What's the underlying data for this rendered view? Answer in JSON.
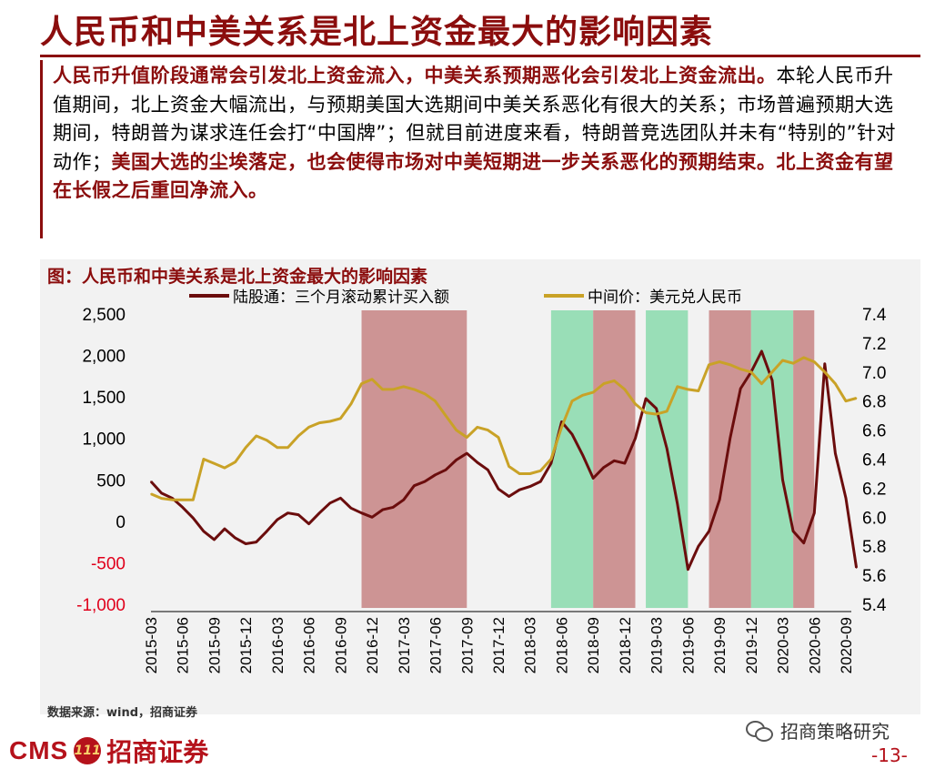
{
  "title": "人民币和中美关系是北上资金最大的影响因素",
  "paragraph": {
    "seg1": "人民币升值阶段通常会引发北上资金流入，中美关系预期恶化会引发北上资金流出。",
    "seg2": "本轮人民币升值期间，北上资金大幅流出，与预期美国大选期间中美关系恶化有很大的关系；市场普遍预期大选期间，特朗普为谋求连任会打“中国牌”；但就目前进度来看，特朗普竞选团队并未有“特别的”针对动作；",
    "seg3": "美国大选的尘埃落定，也会使得市场对中美短期进一步关系恶化的预期结束。北上资金有望在长假之后重回净流入。"
  },
  "chart_data": {
    "type": "line",
    "title": "图：人民币和中美关系是北上资金最大的影响因素",
    "legend": [
      "陆股通：三个月滚动累计买入额",
      "中间价：美元兑人民币"
    ],
    "colors": {
      "flow": "#6b0d0d",
      "cny": "#c9a227",
      "red_band": "#c98a8a",
      "green_band": "#8fdcb0"
    },
    "left_axis": {
      "ticks": [
        "2,500",
        "2,000",
        "1,500",
        "1,000",
        "500",
        "0",
        "-500",
        "-1,000"
      ],
      "values": [
        2500,
        2000,
        1500,
        1000,
        500,
        0,
        -500,
        -1000
      ],
      "ylim": [
        -1000,
        2500
      ]
    },
    "right_axis": {
      "ticks": [
        "7.4",
        "7.2",
        "7.0",
        "6.8",
        "6.6",
        "6.4",
        "6.2",
        "6.0",
        "5.8",
        "5.6",
        "5.4"
      ],
      "values": [
        7.4,
        7.2,
        7.0,
        6.8,
        6.6,
        6.4,
        6.2,
        6.0,
        5.8,
        5.6,
        5.4
      ],
      "ylim": [
        5.4,
        7.4
      ]
    },
    "x_ticks": [
      "2015-03",
      "2015-06",
      "2015-09",
      "2015-12",
      "2016-03",
      "2016-06",
      "2016-09",
      "2016-12",
      "2017-03",
      "2017-06",
      "2017-09",
      "2017-12",
      "2018-03",
      "2018-06",
      "2018-09",
      "2018-12",
      "2019-03",
      "2019-06",
      "2019-09",
      "2019-12",
      "2020-03",
      "2020-06",
      "2020-09"
    ],
    "x_range": [
      "2015-03",
      "2020-09"
    ],
    "bands": [
      {
        "from": "2016-11",
        "to": "2017-09",
        "color": "red"
      },
      {
        "from": "2018-05",
        "to": "2018-09",
        "color": "green"
      },
      {
        "from": "2018-09",
        "to": "2019-01",
        "color": "red"
      },
      {
        "from": "2019-02",
        "to": "2019-06",
        "color": "green"
      },
      {
        "from": "2019-08",
        "to": "2019-12",
        "color": "red"
      },
      {
        "from": "2019-12",
        "to": "2020-04",
        "color": "green"
      },
      {
        "from": "2020-04",
        "to": "2020-06",
        "color": "red"
      }
    ],
    "series": [
      {
        "name": "陆股通：三个月滚动累计买入额",
        "axis": "left",
        "points": [
          [
            "2015-03",
            480
          ],
          [
            "2015-04",
            340
          ],
          [
            "2015-05",
            280
          ],
          [
            "2015-06",
            170
          ],
          [
            "2015-07",
            40
          ],
          [
            "2015-08",
            -120
          ],
          [
            "2015-09",
            -220
          ],
          [
            "2015-10",
            -90
          ],
          [
            "2015-11",
            -200
          ],
          [
            "2015-12",
            -270
          ],
          [
            "2016-01",
            -250
          ],
          [
            "2016-02",
            -120
          ],
          [
            "2016-03",
            20
          ],
          [
            "2016-04",
            100
          ],
          [
            "2016-05",
            80
          ],
          [
            "2016-06",
            -30
          ],
          [
            "2016-07",
            100
          ],
          [
            "2016-08",
            220
          ],
          [
            "2016-09",
            280
          ],
          [
            "2016-10",
            160
          ],
          [
            "2016-11",
            100
          ],
          [
            "2016-12",
            50
          ],
          [
            "2017-01",
            140
          ],
          [
            "2017-02",
            170
          ],
          [
            "2017-03",
            260
          ],
          [
            "2017-04",
            430
          ],
          [
            "2017-05",
            480
          ],
          [
            "2017-06",
            560
          ],
          [
            "2017-07",
            620
          ],
          [
            "2017-08",
            740
          ],
          [
            "2017-09",
            820
          ],
          [
            "2017-10",
            710
          ],
          [
            "2017-11",
            620
          ],
          [
            "2017-12",
            390
          ],
          [
            "2018-01",
            300
          ],
          [
            "2018-02",
            380
          ],
          [
            "2018-03",
            420
          ],
          [
            "2018-04",
            480
          ],
          [
            "2018-05",
            700
          ],
          [
            "2018-06",
            1200
          ],
          [
            "2018-07",
            1050
          ],
          [
            "2018-08",
            800
          ],
          [
            "2018-09",
            520
          ],
          [
            "2018-10",
            650
          ],
          [
            "2018-11",
            730
          ],
          [
            "2018-12",
            700
          ],
          [
            "2019-01",
            1000
          ],
          [
            "2019-02",
            1480
          ],
          [
            "2019-03",
            1360
          ],
          [
            "2019-04",
            880
          ],
          [
            "2019-05",
            210
          ],
          [
            "2019-06",
            -580
          ],
          [
            "2019-07",
            -300
          ],
          [
            "2019-08",
            -120
          ],
          [
            "2019-09",
            260
          ],
          [
            "2019-10",
            1000
          ],
          [
            "2019-11",
            1600
          ],
          [
            "2019-12",
            1800
          ],
          [
            "2020-01",
            2050
          ],
          [
            "2020-02",
            1700
          ],
          [
            "2020-03",
            500
          ],
          [
            "2020-04",
            -120
          ],
          [
            "2020-05",
            -260
          ],
          [
            "2020-06",
            100
          ],
          [
            "2020-07",
            1900
          ],
          [
            "2020-08",
            820
          ],
          [
            "2020-09",
            280
          ],
          [
            "2020-10",
            -560
          ]
        ]
      },
      {
        "name": "中间价：美元兑人民币",
        "axis": "right",
        "points": [
          [
            "2015-03",
            6.16
          ],
          [
            "2015-04",
            6.13
          ],
          [
            "2015-05",
            6.12
          ],
          [
            "2015-06",
            6.12
          ],
          [
            "2015-07",
            6.12
          ],
          [
            "2015-08",
            6.4
          ],
          [
            "2015-09",
            6.37
          ],
          [
            "2015-10",
            6.34
          ],
          [
            "2015-11",
            6.38
          ],
          [
            "2015-12",
            6.48
          ],
          [
            "2016-01",
            6.56
          ],
          [
            "2016-02",
            6.53
          ],
          [
            "2016-03",
            6.48
          ],
          [
            "2016-04",
            6.48
          ],
          [
            "2016-05",
            6.56
          ],
          [
            "2016-06",
            6.62
          ],
          [
            "2016-07",
            6.65
          ],
          [
            "2016-08",
            6.66
          ],
          [
            "2016-09",
            6.68
          ],
          [
            "2016-10",
            6.78
          ],
          [
            "2016-11",
            6.92
          ],
          [
            "2016-12",
            6.95
          ],
          [
            "2017-01",
            6.88
          ],
          [
            "2017-02",
            6.88
          ],
          [
            "2017-03",
            6.9
          ],
          [
            "2017-04",
            6.88
          ],
          [
            "2017-05",
            6.85
          ],
          [
            "2017-06",
            6.8
          ],
          [
            "2017-07",
            6.7
          ],
          [
            "2017-08",
            6.6
          ],
          [
            "2017-09",
            6.55
          ],
          [
            "2017-10",
            6.62
          ],
          [
            "2017-11",
            6.6
          ],
          [
            "2017-12",
            6.55
          ],
          [
            "2018-01",
            6.35
          ],
          [
            "2018-02",
            6.3
          ],
          [
            "2018-03",
            6.3
          ],
          [
            "2018-04",
            6.32
          ],
          [
            "2018-05",
            6.4
          ],
          [
            "2018-06",
            6.62
          ],
          [
            "2018-07",
            6.8
          ],
          [
            "2018-08",
            6.84
          ],
          [
            "2018-09",
            6.86
          ],
          [
            "2018-10",
            6.92
          ],
          [
            "2018-11",
            6.94
          ],
          [
            "2018-12",
            6.88
          ],
          [
            "2019-01",
            6.78
          ],
          [
            "2019-02",
            6.72
          ],
          [
            "2019-03",
            6.71
          ],
          [
            "2019-04",
            6.73
          ],
          [
            "2019-05",
            6.9
          ],
          [
            "2019-06",
            6.88
          ],
          [
            "2019-07",
            6.87
          ],
          [
            "2019-08",
            7.05
          ],
          [
            "2019-09",
            7.07
          ],
          [
            "2019-10",
            7.05
          ],
          [
            "2019-11",
            7.02
          ],
          [
            "2019-12",
            7.0
          ],
          [
            "2020-01",
            6.92
          ],
          [
            "2020-02",
            7.0
          ],
          [
            "2020-03",
            7.08
          ],
          [
            "2020-04",
            7.06
          ],
          [
            "2020-05",
            7.1
          ],
          [
            "2020-06",
            7.07
          ],
          [
            "2020-07",
            7.0
          ],
          [
            "2020-08",
            6.92
          ],
          [
            "2020-09",
            6.8
          ],
          [
            "2020-10",
            6.82
          ]
        ]
      }
    ]
  },
  "source": "数据来源：wind，招商证券",
  "footer": {
    "logo_cms": "CMS",
    "logo_badge": "111",
    "logo_cn": "招商证券",
    "wechat": "招商策略研究",
    "page": "-13-"
  }
}
